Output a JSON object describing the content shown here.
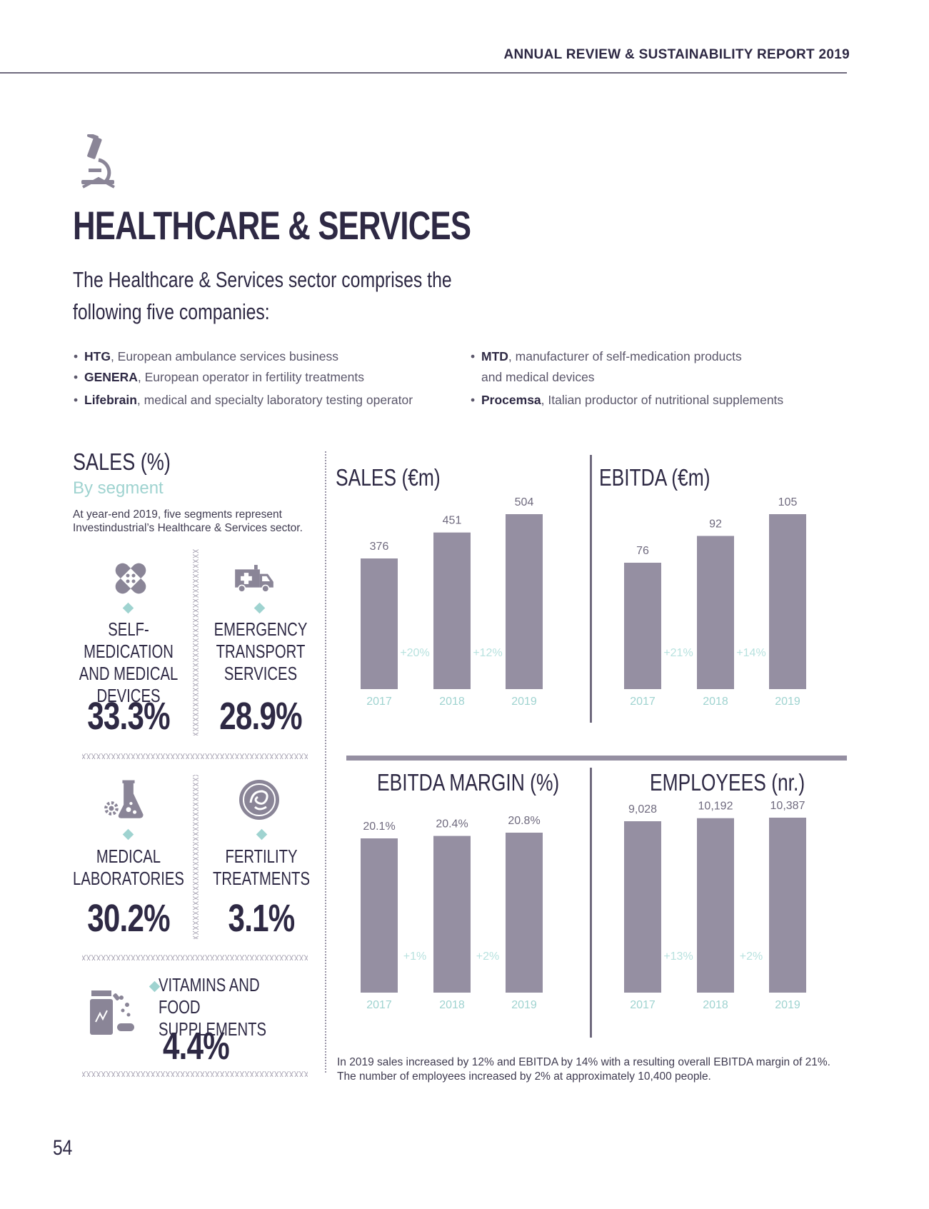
{
  "header": {
    "report_title": "ANNUAL REVIEW & SUSTAINABILITY REPORT 2019"
  },
  "page": {
    "title": "HEALTHCARE & SERVICES",
    "intro": "The Healthcare & Services sector comprises the following five companies:",
    "page_number": "54",
    "icon": "microscope-icon"
  },
  "companies_left": [
    {
      "name": "HTG",
      "desc": ", European ambulance services business"
    },
    {
      "name": "GENERA",
      "desc": ", European operator in fertility treatments"
    },
    {
      "name": "Lifebrain",
      "desc": ", medical and specialty laboratory testing operator"
    }
  ],
  "companies_right": [
    {
      "name": "MTD",
      "desc": ", manufacturer of self-medication products",
      "desc2": "and medical devices"
    },
    {
      "name": "Procemsa",
      "desc": ", Italian productor of nutritional supplements"
    }
  ],
  "segments_panel": {
    "title": "SALES (%)",
    "subtitle": "By segment",
    "note": "At year-end 2019, five segments represent Investindustrial’s Healthcare & Services sector.",
    "segments": [
      {
        "label": "SELF-MEDICATION AND MEDICAL DEVICES",
        "value": "33.3%",
        "icon": "bandage-icon"
      },
      {
        "label": "EMERGENCY TRANSPORT SERVICES",
        "value": "28.9%",
        "icon": "ambulance-icon"
      },
      {
        "label": "MEDICAL LABORATORIES",
        "value": "30.2%",
        "icon": "lab-flask-icon"
      },
      {
        "label": "FERTILITY TREATMENTS",
        "value": "3.1%",
        "icon": "embryo-icon"
      },
      {
        "label": "VITAMINS AND FOOD SUPPLEMENTS",
        "value": "4.4%",
        "icon": "pills-bottle-icon"
      }
    ],
    "accent_color": "#9fd3d0"
  },
  "chart_data": [
    {
      "type": "bar",
      "title": "SALES (€m)",
      "categories": [
        "2017",
        "2018",
        "2019"
      ],
      "values": [
        376,
        451,
        504
      ],
      "value_labels": [
        "376",
        "451",
        "504"
      ],
      "growth_labels": [
        "+20%",
        "+12%"
      ],
      "ylim": [
        0,
        504
      ]
    },
    {
      "type": "bar",
      "title": "EBITDA (€m)",
      "categories": [
        "2017",
        "2018",
        "2019"
      ],
      "values": [
        76,
        92,
        105
      ],
      "value_labels": [
        "76",
        "92",
        "105"
      ],
      "growth_labels": [
        "+21%",
        "+14%"
      ],
      "ylim": [
        0,
        105
      ]
    },
    {
      "type": "bar",
      "title": "EBITDA MARGIN (%)",
      "categories": [
        "2017",
        "2018",
        "2019"
      ],
      "values": [
        20.1,
        20.4,
        20.8
      ],
      "value_labels": [
        "20.1%",
        "20.4%",
        "20.8%"
      ],
      "growth_labels": [
        "+1%",
        "+2%"
      ],
      "ylim": [
        0,
        20.8
      ]
    },
    {
      "type": "bar",
      "title": "EMPLOYEES (nr.)",
      "categories": [
        "2017",
        "2018",
        "2019"
      ],
      "values": [
        9028,
        10192,
        10387
      ],
      "value_labels": [
        "9,028",
        "10,192",
        "10,387"
      ],
      "growth_labels": [
        "+13%",
        "+2%"
      ],
      "ylim": [
        0,
        10387
      ]
    }
  ],
  "summary": "In 2019 sales increased by 12% and EBITDA by 14% with a resulting overall EBITDA margin of 21%. The number of employees increased by 2% at approximately 10,400 people.",
  "colors": {
    "bar": "#958fa2",
    "text": "#2e2944",
    "accent": "#9fd3d0"
  }
}
